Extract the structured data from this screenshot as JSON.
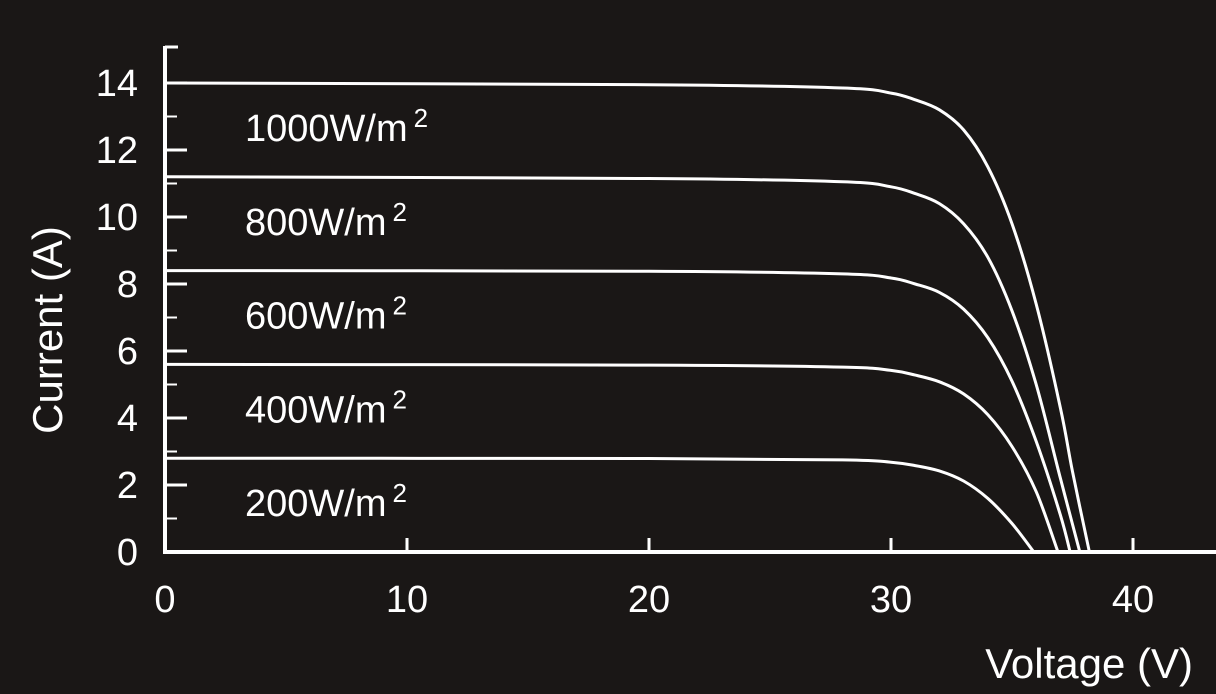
{
  "chart_data": {
    "type": "line",
    "xlabel": "Voltage (V)",
    "ylabel": "Current (A)",
    "xlim": [
      0,
      43
    ],
    "ylim": [
      0,
      14.5
    ],
    "xticks": [
      "0",
      "10",
      "20",
      "30",
      "40"
    ],
    "xtick_values": [
      0,
      10,
      20,
      30,
      40
    ],
    "yticks": [
      "0",
      "2",
      "4",
      "6",
      "8",
      "10",
      "12",
      "14"
    ],
    "ytick_values": [
      0,
      2,
      4,
      6,
      8,
      10,
      12,
      14
    ],
    "grid": false,
    "legend": "inline labels",
    "series": [
      {
        "name": "1000W/m",
        "unit_superscript": "2",
        "x": [
          0,
          20,
          28,
          30,
          31,
          32,
          33,
          34,
          35,
          36,
          37,
          37.5,
          38.2
        ],
        "y": [
          14.0,
          13.95,
          13.85,
          13.7,
          13.5,
          13.2,
          12.6,
          11.5,
          9.8,
          7.4,
          4.3,
          2.4,
          0
        ]
      },
      {
        "name": "800W/m",
        "unit_superscript": "2",
        "x": [
          0,
          20,
          28,
          30,
          31,
          32,
          33,
          34,
          35,
          36,
          37,
          37.8
        ],
        "y": [
          11.2,
          11.15,
          11.05,
          10.9,
          10.7,
          10.4,
          9.8,
          8.8,
          7.2,
          5.0,
          2.2,
          0
        ]
      },
      {
        "name": "600W/m",
        "unit_superscript": "2",
        "x": [
          0,
          20,
          28,
          30,
          31,
          32,
          33,
          34,
          35,
          36,
          37,
          37.4
        ],
        "y": [
          8.4,
          8.38,
          8.3,
          8.18,
          8.0,
          7.75,
          7.25,
          6.4,
          5.1,
          3.3,
          1.1,
          0
        ]
      },
      {
        "name": "400W/m",
        "unit_superscript": "2",
        "x": [
          0,
          20,
          28,
          30,
          31,
          32,
          33,
          34,
          35,
          36,
          36.9
        ],
        "y": [
          5.6,
          5.58,
          5.52,
          5.42,
          5.28,
          5.08,
          4.72,
          4.1,
          3.15,
          1.8,
          0
        ]
      },
      {
        "name": "200W/m",
        "unit_superscript": "2",
        "x": [
          0,
          20,
          28,
          30,
          31,
          32,
          33,
          34,
          35,
          35.9
        ],
        "y": [
          2.8,
          2.79,
          2.75,
          2.68,
          2.58,
          2.42,
          2.12,
          1.6,
          0.85,
          0
        ]
      }
    ],
    "colors": {
      "background": "#1a1716",
      "foreground": "#ffffff"
    }
  }
}
